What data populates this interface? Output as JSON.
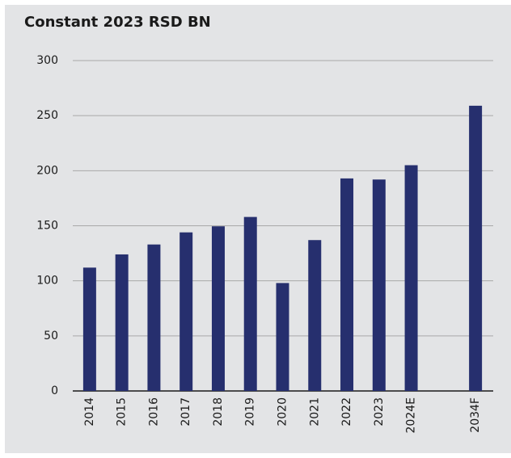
{
  "chart_data": {
    "type": "bar",
    "title": "Constant 2023 RSD BN",
    "categories": [
      "2014",
      "2015",
      "2016",
      "2017",
      "2018",
      "2019",
      "2020",
      "2021",
      "2022",
      "2023",
      "2024E",
      null,
      "2034F"
    ],
    "values": [
      112,
      124,
      133,
      144,
      149.5,
      158,
      98,
      137,
      193,
      192,
      205,
      null,
      259
    ],
    "color": "#262f6e",
    "ylim": [
      0,
      300
    ],
    "yticks": [
      0,
      50,
      100,
      150,
      200,
      250,
      300
    ],
    "grid": true
  }
}
